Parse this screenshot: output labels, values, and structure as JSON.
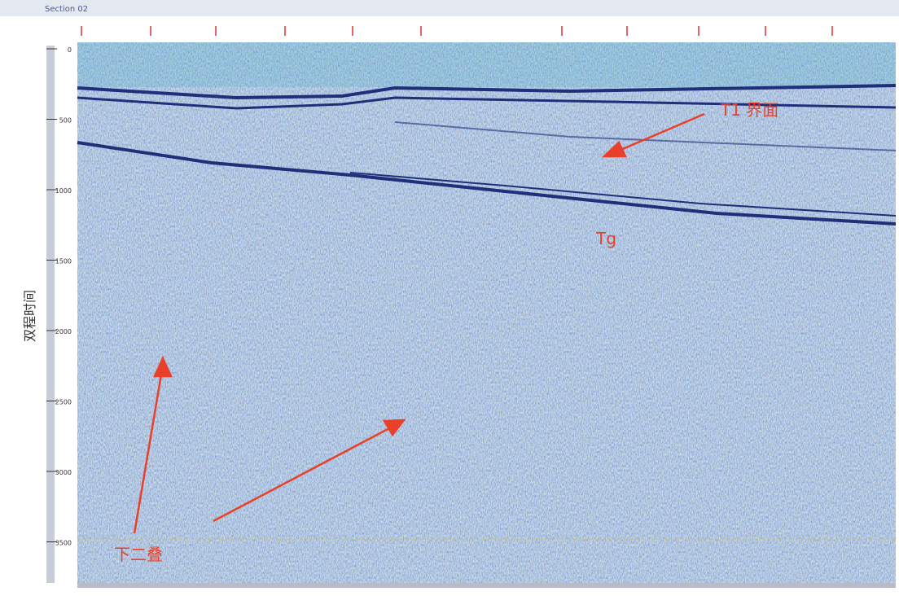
{
  "header": {
    "title": "Section 02"
  },
  "axis": {
    "label": "双程时间",
    "ticks": [
      "0",
      "500",
      "1000",
      "1500",
      "2000",
      "2500",
      "3000",
      "3500"
    ]
  },
  "annotations": [
    "T1 界面",
    "Tg",
    "下二叠"
  ]
}
